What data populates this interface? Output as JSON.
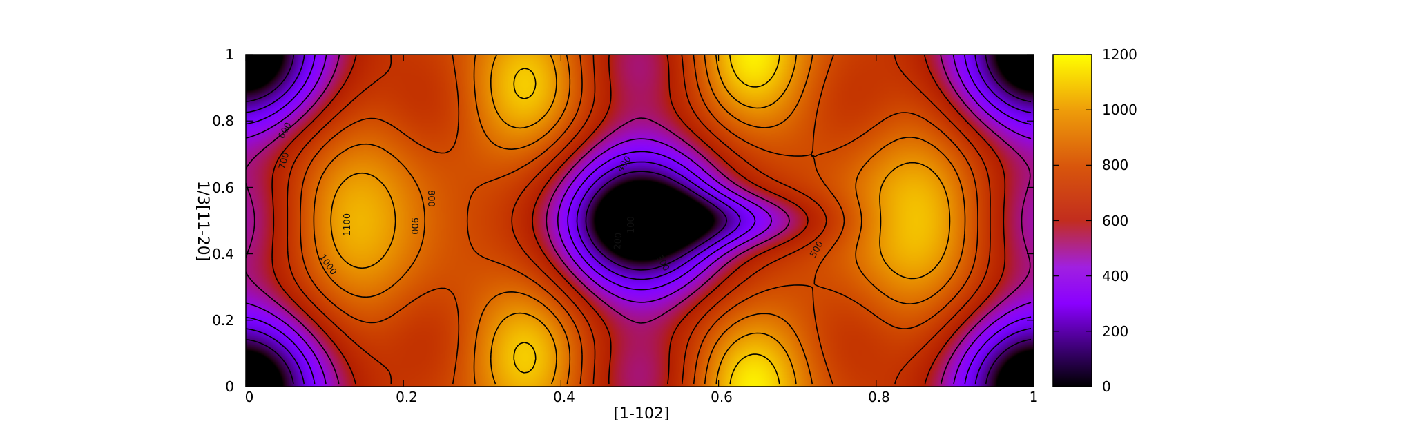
{
  "chart_data": {
    "type": "heatmap",
    "title": "",
    "xlabel": "[1-102]",
    "ylabel": "1/3[11-20]",
    "xlim": [
      0,
      1
    ],
    "ylim": [
      0,
      1
    ],
    "x_ticks": [
      "0",
      "0.2",
      "0.4",
      "0.6",
      "0.8",
      "1"
    ],
    "y_ticks": [
      "0",
      "0.2",
      "0.4",
      "0.6",
      "0.8",
      "1"
    ],
    "colorbar": {
      "range": [
        0,
        1200
      ],
      "ticks": [
        "0",
        "200",
        "400",
        "600",
        "800",
        "1000",
        "1200"
      ],
      "palette": [
        "#000000",
        "#4b0082",
        "#8a00ff",
        "#b040e8",
        "#c23a1a",
        "#e6880a",
        "#ffff00"
      ]
    },
    "contour_levels": [
      100,
      200,
      300,
      400,
      500,
      600,
      700,
      800,
      900,
      1000,
      1100
    ],
    "contour_labels": [
      "600",
      "700",
      "800",
      "900",
      "1000",
      "1100",
      "400",
      "100",
      "200",
      "300",
      "500"
    ],
    "features": [
      {
        "kind": "minimum",
        "x": 0.5,
        "y": 0.5,
        "value": 50
      },
      {
        "kind": "minimum",
        "x": 0.0,
        "y": 0.0,
        "value": 80
      },
      {
        "kind": "minimum",
        "x": 0.0,
        "y": 1.0,
        "value": 80
      },
      {
        "kind": "minimum",
        "x": 1.0,
        "y": 0.0,
        "value": 80
      },
      {
        "kind": "minimum",
        "x": 1.0,
        "y": 1.0,
        "value": 80
      },
      {
        "kind": "maximum",
        "x": 0.13,
        "y": 0.5,
        "value": 1120
      },
      {
        "kind": "maximum",
        "x": 0.86,
        "y": 0.5,
        "value": 1150
      },
      {
        "kind": "maximum",
        "x": 0.36,
        "y": 0.9,
        "value": 1150
      },
      {
        "kind": "maximum",
        "x": 0.36,
        "y": 0.1,
        "value": 1150
      },
      {
        "kind": "maximum",
        "x": 0.64,
        "y": 1.0,
        "value": 1200
      },
      {
        "kind": "maximum",
        "x": 0.64,
        "y": 0.0,
        "value": 1200
      }
    ]
  }
}
